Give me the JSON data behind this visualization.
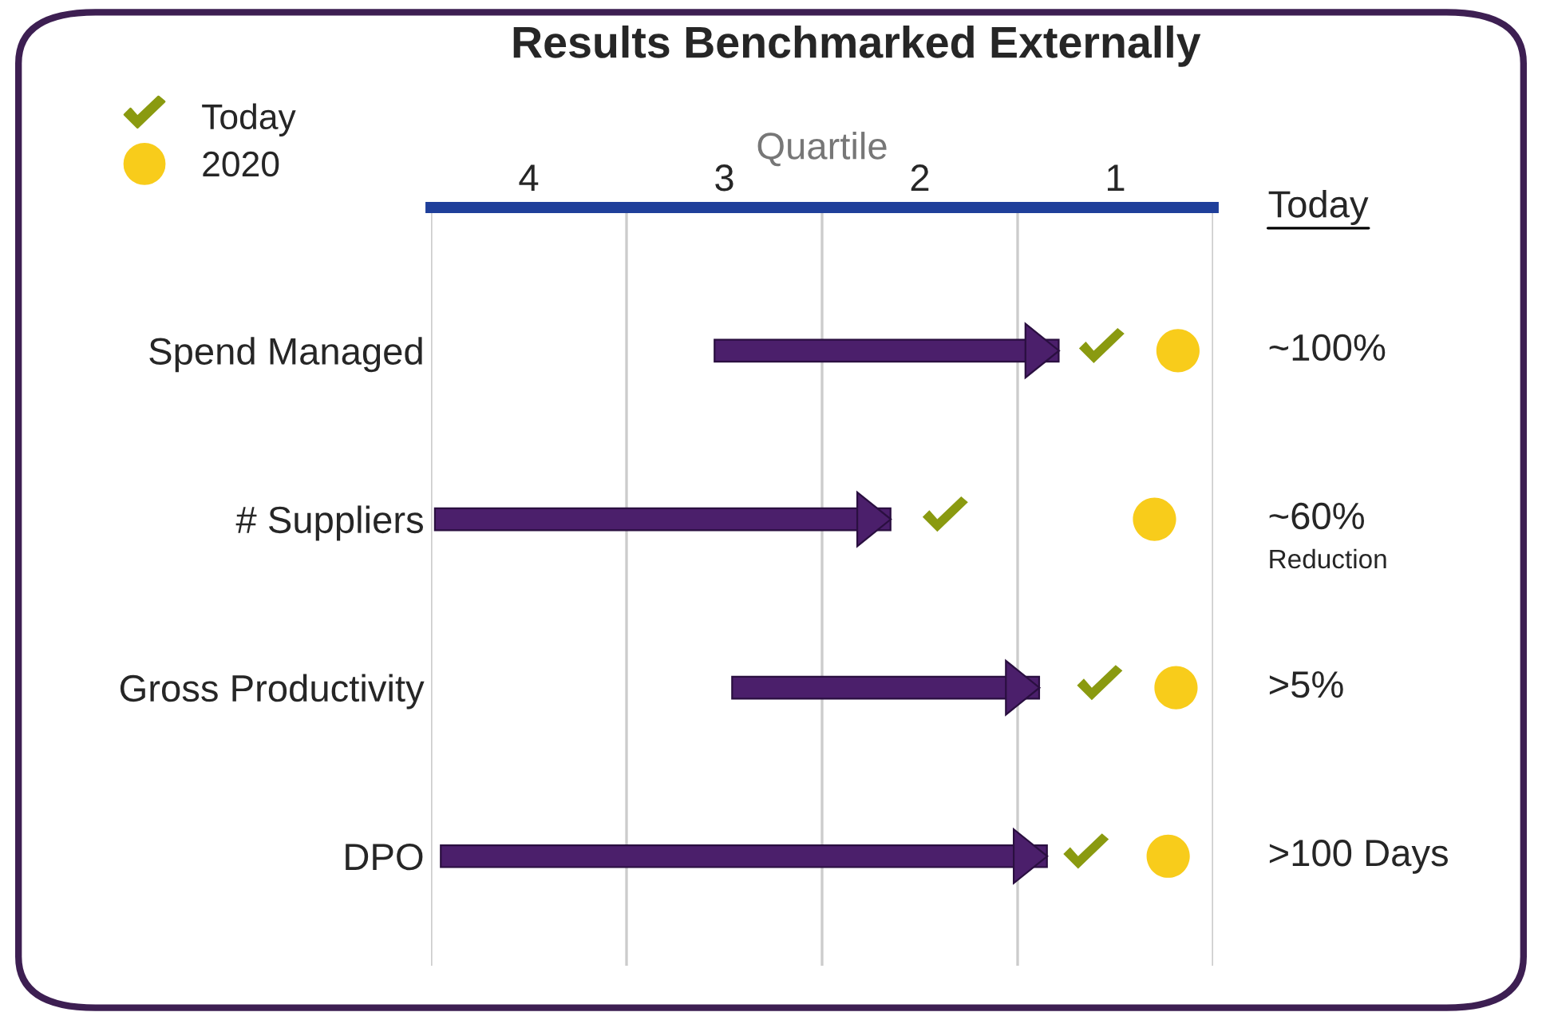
{
  "chart_data": {
    "type": "bar",
    "orientation": "horizontal",
    "title": "Results Benchmarked Externally",
    "xlabel": "Quartile",
    "categories": [
      "Spend Managed",
      "# Suppliers",
      "Gross Productivity",
      "DPO"
    ],
    "xlim": [
      4.5,
      0.5
    ],
    "xticks": [
      4,
      3,
      2,
      1
    ],
    "series": [
      {
        "color": "#4b1f6b",
        "base": [
          3.05,
          4.48,
          2.96,
          4.45
        ],
        "values": [
          -1.76,
          -2.33,
          -1.57,
          -3.1
        ]
      },
      {
        "type": "scatter",
        "name": "Today",
        "color": "#8a9a10",
        "values": [
          1.07,
          1.87,
          1.08,
          1.15
        ]
      },
      {
        "type": "scatter",
        "name": "2020",
        "color": "#f8cc1b",
        "marker": "circle",
        "values": [
          0.68,
          0.8,
          0.69,
          0.73
        ]
      }
    ],
    "ref_lines": [
      {
        "axis": "x",
        "value": 4.5,
        "color": "#cccccc"
      },
      {
        "axis": "x",
        "value": 3.5,
        "color": "#cccccc"
      },
      {
        "axis": "x",
        "value": 2.5,
        "color": "#cccccc"
      },
      {
        "axis": "x",
        "value": 1.5,
        "color": "#cccccc"
      },
      {
        "axis": "x",
        "value": 0.5,
        "color": "#cccccc"
      }
    ],
    "annotations": [
      "Today",
      "~100%",
      "~60%\nReduction",
      ">5%",
      ">100 Days"
    ],
    "legend": "top left",
    "grid": false
  }
}
